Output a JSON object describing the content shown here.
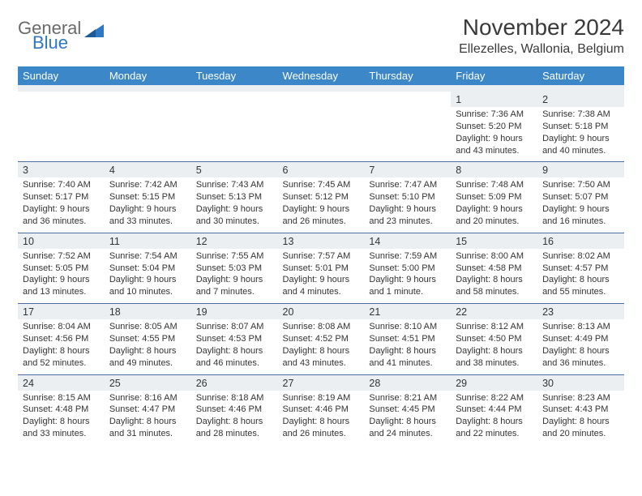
{
  "brand": {
    "line1": "General",
    "line2": "Blue",
    "text_color": "#6a6a6a",
    "accent_color": "#2f78c2"
  },
  "title": "November 2024",
  "location": "Ellezelles, Wallonia, Belgium",
  "colors": {
    "header_bg": "#3c87c7",
    "header_text": "#ffffff",
    "daynum_bg": "#eceff1",
    "separator": "#4a6fa0",
    "body_text": "#333333"
  },
  "day_headers": [
    "Sunday",
    "Monday",
    "Tuesday",
    "Wednesday",
    "Thursday",
    "Friday",
    "Saturday"
  ],
  "weeks": [
    [
      {
        "n": "",
        "sr": "",
        "ss": "",
        "dl": ""
      },
      {
        "n": "",
        "sr": "",
        "ss": "",
        "dl": ""
      },
      {
        "n": "",
        "sr": "",
        "ss": "",
        "dl": ""
      },
      {
        "n": "",
        "sr": "",
        "ss": "",
        "dl": ""
      },
      {
        "n": "",
        "sr": "",
        "ss": "",
        "dl": ""
      },
      {
        "n": "1",
        "sr": "Sunrise: 7:36 AM",
        "ss": "Sunset: 5:20 PM",
        "dl": "Daylight: 9 hours and 43 minutes."
      },
      {
        "n": "2",
        "sr": "Sunrise: 7:38 AM",
        "ss": "Sunset: 5:18 PM",
        "dl": "Daylight: 9 hours and 40 minutes."
      }
    ],
    [
      {
        "n": "3",
        "sr": "Sunrise: 7:40 AM",
        "ss": "Sunset: 5:17 PM",
        "dl": "Daylight: 9 hours and 36 minutes."
      },
      {
        "n": "4",
        "sr": "Sunrise: 7:42 AM",
        "ss": "Sunset: 5:15 PM",
        "dl": "Daylight: 9 hours and 33 minutes."
      },
      {
        "n": "5",
        "sr": "Sunrise: 7:43 AM",
        "ss": "Sunset: 5:13 PM",
        "dl": "Daylight: 9 hours and 30 minutes."
      },
      {
        "n": "6",
        "sr": "Sunrise: 7:45 AM",
        "ss": "Sunset: 5:12 PM",
        "dl": "Daylight: 9 hours and 26 minutes."
      },
      {
        "n": "7",
        "sr": "Sunrise: 7:47 AM",
        "ss": "Sunset: 5:10 PM",
        "dl": "Daylight: 9 hours and 23 minutes."
      },
      {
        "n": "8",
        "sr": "Sunrise: 7:48 AM",
        "ss": "Sunset: 5:09 PM",
        "dl": "Daylight: 9 hours and 20 minutes."
      },
      {
        "n": "9",
        "sr": "Sunrise: 7:50 AM",
        "ss": "Sunset: 5:07 PM",
        "dl": "Daylight: 9 hours and 16 minutes."
      }
    ],
    [
      {
        "n": "10",
        "sr": "Sunrise: 7:52 AM",
        "ss": "Sunset: 5:05 PM",
        "dl": "Daylight: 9 hours and 13 minutes."
      },
      {
        "n": "11",
        "sr": "Sunrise: 7:54 AM",
        "ss": "Sunset: 5:04 PM",
        "dl": "Daylight: 9 hours and 10 minutes."
      },
      {
        "n": "12",
        "sr": "Sunrise: 7:55 AM",
        "ss": "Sunset: 5:03 PM",
        "dl": "Daylight: 9 hours and 7 minutes."
      },
      {
        "n": "13",
        "sr": "Sunrise: 7:57 AM",
        "ss": "Sunset: 5:01 PM",
        "dl": "Daylight: 9 hours and 4 minutes."
      },
      {
        "n": "14",
        "sr": "Sunrise: 7:59 AM",
        "ss": "Sunset: 5:00 PM",
        "dl": "Daylight: 9 hours and 1 minute."
      },
      {
        "n": "15",
        "sr": "Sunrise: 8:00 AM",
        "ss": "Sunset: 4:58 PM",
        "dl": "Daylight: 8 hours and 58 minutes."
      },
      {
        "n": "16",
        "sr": "Sunrise: 8:02 AM",
        "ss": "Sunset: 4:57 PM",
        "dl": "Daylight: 8 hours and 55 minutes."
      }
    ],
    [
      {
        "n": "17",
        "sr": "Sunrise: 8:04 AM",
        "ss": "Sunset: 4:56 PM",
        "dl": "Daylight: 8 hours and 52 minutes."
      },
      {
        "n": "18",
        "sr": "Sunrise: 8:05 AM",
        "ss": "Sunset: 4:55 PM",
        "dl": "Daylight: 8 hours and 49 minutes."
      },
      {
        "n": "19",
        "sr": "Sunrise: 8:07 AM",
        "ss": "Sunset: 4:53 PM",
        "dl": "Daylight: 8 hours and 46 minutes."
      },
      {
        "n": "20",
        "sr": "Sunrise: 8:08 AM",
        "ss": "Sunset: 4:52 PM",
        "dl": "Daylight: 8 hours and 43 minutes."
      },
      {
        "n": "21",
        "sr": "Sunrise: 8:10 AM",
        "ss": "Sunset: 4:51 PM",
        "dl": "Daylight: 8 hours and 41 minutes."
      },
      {
        "n": "22",
        "sr": "Sunrise: 8:12 AM",
        "ss": "Sunset: 4:50 PM",
        "dl": "Daylight: 8 hours and 38 minutes."
      },
      {
        "n": "23",
        "sr": "Sunrise: 8:13 AM",
        "ss": "Sunset: 4:49 PM",
        "dl": "Daylight: 8 hours and 36 minutes."
      }
    ],
    [
      {
        "n": "24",
        "sr": "Sunrise: 8:15 AM",
        "ss": "Sunset: 4:48 PM",
        "dl": "Daylight: 8 hours and 33 minutes."
      },
      {
        "n": "25",
        "sr": "Sunrise: 8:16 AM",
        "ss": "Sunset: 4:47 PM",
        "dl": "Daylight: 8 hours and 31 minutes."
      },
      {
        "n": "26",
        "sr": "Sunrise: 8:18 AM",
        "ss": "Sunset: 4:46 PM",
        "dl": "Daylight: 8 hours and 28 minutes."
      },
      {
        "n": "27",
        "sr": "Sunrise: 8:19 AM",
        "ss": "Sunset: 4:46 PM",
        "dl": "Daylight: 8 hours and 26 minutes."
      },
      {
        "n": "28",
        "sr": "Sunrise: 8:21 AM",
        "ss": "Sunset: 4:45 PM",
        "dl": "Daylight: 8 hours and 24 minutes."
      },
      {
        "n": "29",
        "sr": "Sunrise: 8:22 AM",
        "ss": "Sunset: 4:44 PM",
        "dl": "Daylight: 8 hours and 22 minutes."
      },
      {
        "n": "30",
        "sr": "Sunrise: 8:23 AM",
        "ss": "Sunset: 4:43 PM",
        "dl": "Daylight: 8 hours and 20 minutes."
      }
    ]
  ]
}
